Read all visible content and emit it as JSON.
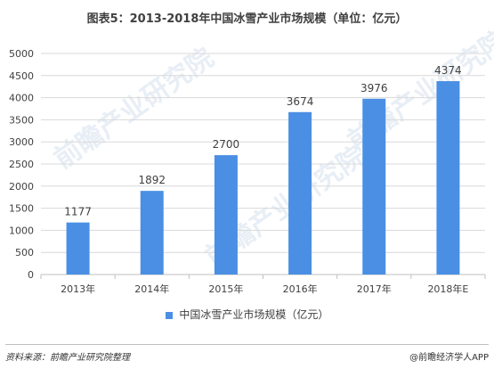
{
  "title": "图表5：2013-2018年中国冰雪产业市场规模（单位：亿元）",
  "source": "资料来源：前瞻产业研究院整理",
  "publisher": "@前瞻经济学人APP",
  "watermark": "前瞻产业研究院",
  "colors": {
    "bar": "#4a8fe3",
    "grid": "#d9d9d9",
    "axis": "#bfbfbf"
  },
  "chart_data": {
    "type": "bar",
    "categories": [
      "2013年",
      "2014年",
      "2015年",
      "2016年",
      "2017年",
      "2018年E"
    ],
    "series": [
      {
        "name": "中国冰雪产业市场规模（亿元）",
        "values": [
          1177,
          1892,
          2700,
          3674,
          3976,
          4374
        ]
      }
    ],
    "ylim": [
      0,
      5000
    ],
    "yticks": [
      0,
      500,
      1000,
      1500,
      2000,
      2500,
      3000,
      3500,
      4000,
      4500,
      5000
    ],
    "grid": true,
    "legend": "bottom",
    "data_labels": true
  }
}
